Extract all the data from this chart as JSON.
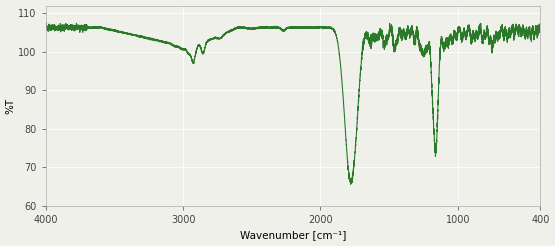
{
  "xlabel": "Wavenumber [cm⁻¹]",
  "ylabel": "%T",
  "xlim": [
    4000,
    400
  ],
  "ylim": [
    60,
    112
  ],
  "yticks": [
    60,
    70,
    80,
    90,
    100,
    110
  ],
  "xticks": [
    4000,
    3000,
    2000,
    1000,
    400
  ],
  "line_color": "#2a7a2a",
  "bg_color": "#f0f0eb",
  "linewidth": 0.8
}
